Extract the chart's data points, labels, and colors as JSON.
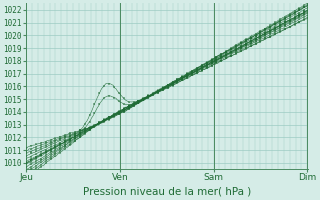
{
  "title": "",
  "xlabel": "Pression niveau de la mer( hPa )",
  "ylabel": "",
  "ylim": [
    1009.5,
    1022.5
  ],
  "yticks": [
    1010,
    1011,
    1012,
    1013,
    1014,
    1015,
    1016,
    1017,
    1018,
    1019,
    1020,
    1021,
    1022
  ],
  "xtick_labels": [
    "Jeu",
    "Ven",
    "Sam",
    "Dim"
  ],
  "xtick_positions": [
    0,
    96,
    192,
    288
  ],
  "total_points": 290,
  "bg_color": "#d5ece7",
  "grid_color": "#9eccc4",
  "line_color": "#1f6b35",
  "marker_color": "#1f6b35",
  "vline_color": "#4a8a60",
  "font_color": "#1f6b35",
  "xlabel_fontsize": 7.5,
  "ytick_fontsize": 5.5,
  "xtick_fontsize": 6.5
}
